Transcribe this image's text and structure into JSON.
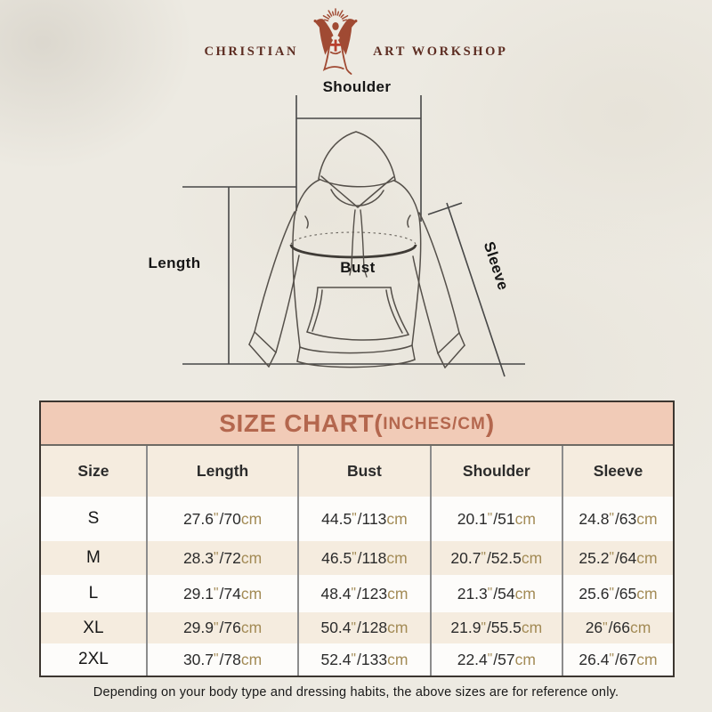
{
  "logo": {
    "brand_left": "CHRISTIAN",
    "brand_right": "ART WORKSHOP",
    "figure_icon": "jesus-open-arms-rays"
  },
  "diagram": {
    "labels": {
      "shoulder": "Shoulder",
      "length": "Length",
      "bust": "Bust",
      "sleeve": "Sleeve"
    }
  },
  "size_chart": {
    "title_main": "SIZE CHART(",
    "title_sub": "INCHES/CM",
    "title_close": ")",
    "columns": [
      "Size",
      "Length",
      "Bust",
      "Shoulder",
      "Sleeve"
    ],
    "rows": [
      {
        "size": "S",
        "length": "27.6\"/70cm",
        "bust": "44.5\"/113cm",
        "shoulder": "20.1\"/51cm",
        "sleeve": "24.8\"/63cm"
      },
      {
        "size": "M",
        "length": "28.3\"/72cm",
        "bust": "46.5\"/118cm",
        "shoulder": "20.7\"/52.5cm",
        "sleeve": "25.2\"/64cm"
      },
      {
        "size": "L",
        "length": "29.1\"/74cm",
        "bust": "48.4\"/123cm",
        "shoulder": "21.3\"/54cm",
        "sleeve": "25.6\"/65cm"
      },
      {
        "size": "XL",
        "length": "29.9\"/76cm",
        "bust": "50.4\"/128cm",
        "shoulder": "21.9\"/55.5cm",
        "sleeve": "26\"/66cm"
      },
      {
        "size": "2XL",
        "length": "30.7\"/78cm",
        "bust": "52.4\"/133cm",
        "shoulder": "22.4\"/57cm",
        "sleeve": "26.4\"/67cm"
      }
    ]
  },
  "footer": {
    "note": "Depending on your body type and dressing habits, the above sizes are for reference only."
  },
  "colors": {
    "band_bg": "#f1cbb7",
    "band_text": "#b4674e",
    "stripe_bg": "#f5ecdf",
    "row_bg": "#fdfcfa",
    "unit_text": "#a38b56",
    "logo_text": "#5d2d22",
    "figure": "#a04a33",
    "cross": "#b8402e",
    "table_border": "#3c3630",
    "divider": "#8c8c8c"
  }
}
